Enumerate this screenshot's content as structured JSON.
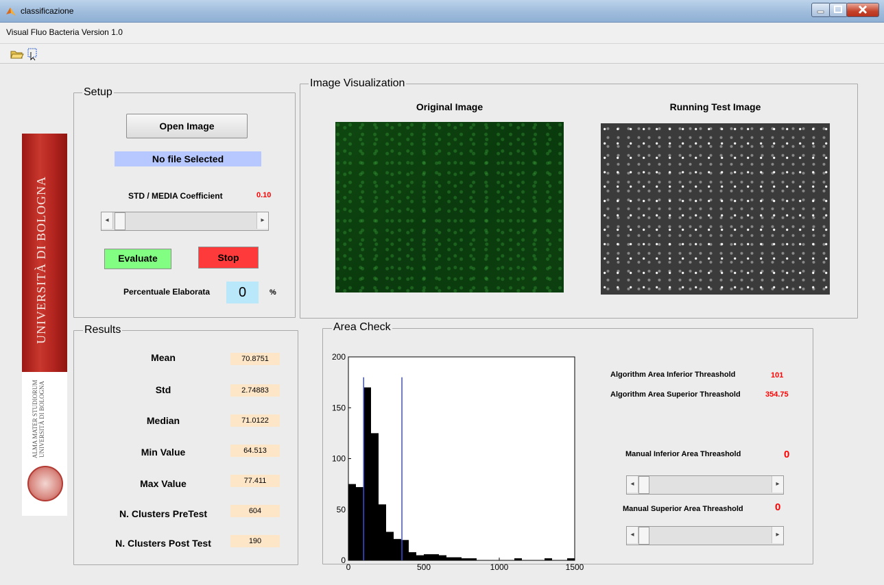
{
  "window": {
    "title": "classificazione",
    "app_icon": "matlab-icon"
  },
  "menu": {
    "label": "Visual Fluo Bacteria Version 1.0"
  },
  "toolbar": {
    "icons": [
      "open-folder-icon",
      "select-tool-icon"
    ]
  },
  "logo": {
    "text": "UNIVERSITÀ DI BOLOGNA",
    "sub": "ALMA MATER STUDIORUM UNIVERSITÀ DI BOLOGNA"
  },
  "setup": {
    "title": "Setup",
    "open_button": "Open Image",
    "file_status": "No file Selected",
    "coeff_label": "STD / MEDIA Coefficient",
    "coeff_value": "0.10",
    "evaluate_button": "Evaluate",
    "stop_button": "Stop",
    "percent_label": "Percentuale Elaborata",
    "percent_value": "0",
    "percent_unit": "%"
  },
  "results": {
    "title": "Results",
    "rows": [
      {
        "label": "Mean",
        "value": "70.8751"
      },
      {
        "label": "Std",
        "value": "2.74883"
      },
      {
        "label": "Median",
        "value": "71.0122"
      },
      {
        "label": "Min Value",
        "value": "64.513"
      },
      {
        "label": "Max Value",
        "value": "77.411"
      },
      {
        "label": "N. Clusters PreTest",
        "value": "604"
      },
      {
        "label": "N. Clusters Post Test",
        "value": "190"
      }
    ]
  },
  "visualization": {
    "title": "Image Visualization",
    "original_title": "Original Image",
    "running_title": "Running Test Image"
  },
  "area_check": {
    "title": "Area Check",
    "alg_inf_label": "Algorithm Area Inferior Threashold",
    "alg_inf_value": "101",
    "alg_sup_label": "Algorithm Area Superior Threashold",
    "alg_sup_value": "354.75",
    "man_inf_label": "Manual Inferior Area Threashold",
    "man_inf_value": "0",
    "man_sup_label": "Manual Superior Area Threashold",
    "man_sup_value": "0"
  },
  "chart_data": {
    "type": "bar",
    "xlim": [
      0,
      1500
    ],
    "ylim": [
      0,
      200
    ],
    "xticks": [
      0,
      500,
      1000,
      1500
    ],
    "yticks": [
      0,
      50,
      100,
      150,
      200
    ],
    "bin_edges": [
      0,
      50,
      100,
      150,
      200,
      250,
      300,
      350,
      400,
      450,
      500,
      550,
      600,
      650,
      700,
      750,
      800,
      850,
      900,
      950,
      1000,
      1050,
      1100,
      1150,
      1200,
      1250,
      1300,
      1350,
      1400,
      1450,
      1500
    ],
    "values": [
      75,
      72,
      170,
      125,
      55,
      28,
      21,
      20,
      8,
      5,
      6,
      6,
      5,
      3,
      3,
      2,
      2,
      0,
      0,
      0,
      0,
      0,
      2,
      0,
      0,
      0,
      2,
      0,
      0,
      2
    ],
    "vlines": [
      101,
      354.75
    ],
    "bar_color": "#000000",
    "vline_color": "#3b4fd6"
  }
}
